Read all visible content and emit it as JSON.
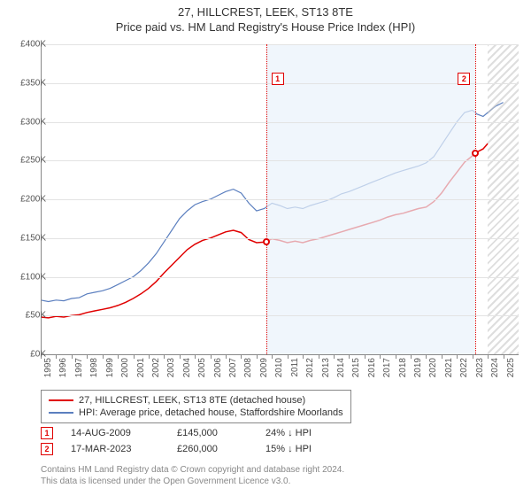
{
  "titles": {
    "line1": "27, HILLCREST, LEEK, ST13 8TE",
    "line2": "Price paid vs. HM Land Registry's House Price Index (HPI)"
  },
  "chart": {
    "type": "line",
    "background_color": "#ffffff",
    "grid_color": "#e3e3e3",
    "axis_color": "#888888",
    "label_color": "#555555",
    "label_fontsize": 10,
    "x": {
      "min": 1995,
      "max": 2026,
      "ticks": [
        1995,
        1996,
        1997,
        1998,
        1999,
        2000,
        2001,
        2002,
        2003,
        2004,
        2005,
        2006,
        2007,
        2008,
        2009,
        2010,
        2011,
        2012,
        2013,
        2014,
        2015,
        2016,
        2017,
        2018,
        2019,
        2020,
        2021,
        2022,
        2023,
        2024,
        2025
      ]
    },
    "y": {
      "min": 0,
      "max": 400000,
      "step": 50000,
      "prefix": "£",
      "suffix": "K",
      "scaleK": true,
      "ticks": [
        0,
        50000,
        100000,
        150000,
        200000,
        250000,
        300000,
        350000,
        400000
      ]
    },
    "shaded_region": {
      "from": 2009.62,
      "to": 2023.21,
      "color": "#eaf2fb",
      "opacity": 0.7
    },
    "future_hatch": {
      "from": 2024.0,
      "to": 2026
    },
    "series": [
      {
        "id": "hpi",
        "label": "HPI: Average price, detached house, Staffordshire Moorlands",
        "color": "#5b7fbf",
        "line_width": 1.2,
        "points": [
          [
            1995.0,
            70000
          ],
          [
            1995.5,
            68000
          ],
          [
            1996.0,
            70000
          ],
          [
            1996.5,
            69000
          ],
          [
            1997.0,
            72000
          ],
          [
            1997.5,
            73000
          ],
          [
            1998.0,
            78000
          ],
          [
            1998.5,
            80000
          ],
          [
            1999.0,
            82000
          ],
          [
            1999.5,
            85000
          ],
          [
            2000.0,
            90000
          ],
          [
            2000.5,
            95000
          ],
          [
            2001.0,
            100000
          ],
          [
            2001.5,
            108000
          ],
          [
            2002.0,
            118000
          ],
          [
            2002.5,
            130000
          ],
          [
            2003.0,
            145000
          ],
          [
            2003.5,
            160000
          ],
          [
            2004.0,
            175000
          ],
          [
            2004.5,
            185000
          ],
          [
            2005.0,
            193000
          ],
          [
            2005.5,
            197000
          ],
          [
            2006.0,
            200000
          ],
          [
            2006.5,
            205000
          ],
          [
            2007.0,
            210000
          ],
          [
            2007.5,
            213000
          ],
          [
            2008.0,
            208000
          ],
          [
            2008.5,
            195000
          ],
          [
            2009.0,
            185000
          ],
          [
            2009.5,
            188000
          ],
          [
            2010.0,
            195000
          ],
          [
            2010.5,
            192000
          ],
          [
            2011.0,
            188000
          ],
          [
            2011.5,
            190000
          ],
          [
            2012.0,
            188000
          ],
          [
            2012.5,
            192000
          ],
          [
            2013.0,
            195000
          ],
          [
            2013.5,
            198000
          ],
          [
            2014.0,
            202000
          ],
          [
            2014.5,
            207000
          ],
          [
            2015.0,
            210000
          ],
          [
            2015.5,
            214000
          ],
          [
            2016.0,
            218000
          ],
          [
            2016.5,
            222000
          ],
          [
            2017.0,
            226000
          ],
          [
            2017.5,
            230000
          ],
          [
            2018.0,
            234000
          ],
          [
            2018.5,
            237000
          ],
          [
            2019.0,
            240000
          ],
          [
            2019.5,
            243000
          ],
          [
            2020.0,
            247000
          ],
          [
            2020.5,
            255000
          ],
          [
            2021.0,
            270000
          ],
          [
            2021.5,
            285000
          ],
          [
            2022.0,
            300000
          ],
          [
            2022.5,
            312000
          ],
          [
            2023.0,
            315000
          ],
          [
            2023.3,
            310000
          ],
          [
            2023.7,
            307000
          ],
          [
            2024.0,
            312000
          ],
          [
            2024.5,
            320000
          ],
          [
            2025.0,
            325000
          ]
        ]
      },
      {
        "id": "price_paid",
        "label": "27, HILLCREST, LEEK, ST13 8TE (detached house)",
        "color": "#e00000",
        "line_width": 1.5,
        "points": [
          [
            1995.0,
            48000
          ],
          [
            1995.5,
            47000
          ],
          [
            1996.0,
            49000
          ],
          [
            1996.5,
            48000
          ],
          [
            1997.0,
            50000
          ],
          [
            1997.5,
            51000
          ],
          [
            1998.0,
            54000
          ],
          [
            1998.5,
            56000
          ],
          [
            1999.0,
            58000
          ],
          [
            1999.5,
            60000
          ],
          [
            2000.0,
            63000
          ],
          [
            2000.5,
            67000
          ],
          [
            2001.0,
            72000
          ],
          [
            2001.5,
            78000
          ],
          [
            2002.0,
            85000
          ],
          [
            2002.5,
            94000
          ],
          [
            2003.0,
            105000
          ],
          [
            2003.5,
            115000
          ],
          [
            2004.0,
            125000
          ],
          [
            2004.5,
            135000
          ],
          [
            2005.0,
            142000
          ],
          [
            2005.5,
            147000
          ],
          [
            2006.0,
            150000
          ],
          [
            2006.5,
            154000
          ],
          [
            2007.0,
            158000
          ],
          [
            2007.5,
            160000
          ],
          [
            2008.0,
            157000
          ],
          [
            2008.5,
            148000
          ],
          [
            2009.0,
            144000
          ],
          [
            2009.62,
            145000
          ],
          [
            2010.0,
            149000
          ],
          [
            2010.5,
            147000
          ],
          [
            2011.0,
            144000
          ],
          [
            2011.5,
            146000
          ],
          [
            2012.0,
            144000
          ],
          [
            2012.5,
            147000
          ],
          [
            2013.0,
            149000
          ],
          [
            2013.5,
            152000
          ],
          [
            2014.0,
            155000
          ],
          [
            2014.5,
            158000
          ],
          [
            2015.0,
            161000
          ],
          [
            2015.5,
            164000
          ],
          [
            2016.0,
            167000
          ],
          [
            2016.5,
            170000
          ],
          [
            2017.0,
            173000
          ],
          [
            2017.5,
            177000
          ],
          [
            2018.0,
            180000
          ],
          [
            2018.5,
            182000
          ],
          [
            2019.0,
            185000
          ],
          [
            2019.5,
            188000
          ],
          [
            2020.0,
            190000
          ],
          [
            2020.5,
            197000
          ],
          [
            2021.0,
            208000
          ],
          [
            2021.5,
            222000
          ],
          [
            2022.0,
            235000
          ],
          [
            2022.5,
            248000
          ],
          [
            2023.0,
            256000
          ],
          [
            2023.21,
            260000
          ],
          [
            2023.7,
            265000
          ],
          [
            2024.0,
            272000
          ]
        ]
      }
    ],
    "markers": [
      {
        "n": "1",
        "x": 2009.62,
        "y": 145000
      },
      {
        "n": "2",
        "x": 2023.21,
        "y": 260000
      }
    ]
  },
  "legend": {
    "items": [
      {
        "series": "price_paid",
        "text": "27, HILLCREST, LEEK, ST13 8TE (detached house)",
        "color": "#e00000"
      },
      {
        "series": "hpi",
        "text": "HPI: Average price, detached house, Staffordshire Moorlands",
        "color": "#5b7fbf"
      }
    ]
  },
  "transactions": [
    {
      "n": "1",
      "date": "14-AUG-2009",
      "price": "£145,000",
      "diff": "24% ↓ HPI"
    },
    {
      "n": "2",
      "date": "17-MAR-2023",
      "price": "£260,000",
      "diff": "15% ↓ HPI"
    }
  ],
  "footer": {
    "line1": "Contains HM Land Registry data © Crown copyright and database right 2024.",
    "line2": "This data is licensed under the Open Government Licence v3.0."
  }
}
